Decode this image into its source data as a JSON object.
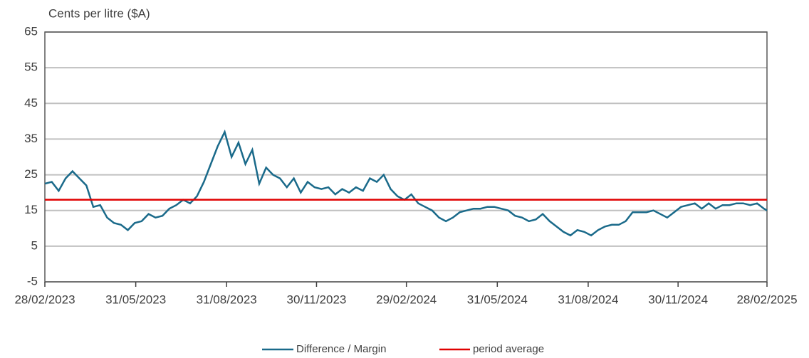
{
  "chart_data": {
    "type": "line",
    "y_label": "Cents per litre ($A)",
    "x": [
      "28/02/2023",
      "07/03/2023",
      "14/03/2023",
      "21/03/2023",
      "28/03/2023",
      "04/04/2023",
      "11/04/2023",
      "18/04/2023",
      "25/04/2023",
      "02/05/2023",
      "09/05/2023",
      "16/05/2023",
      "23/05/2023",
      "30/05/2023",
      "06/06/2023",
      "13/06/2023",
      "20/06/2023",
      "27/06/2023",
      "04/07/2023",
      "11/07/2023",
      "18/07/2023",
      "25/07/2023",
      "01/08/2023",
      "08/08/2023",
      "15/08/2023",
      "22/08/2023",
      "29/08/2023",
      "05/09/2023",
      "12/09/2023",
      "19/09/2023",
      "26/09/2023",
      "03/10/2023",
      "10/10/2023",
      "17/10/2023",
      "24/10/2023",
      "31/10/2023",
      "07/11/2023",
      "14/11/2023",
      "21/11/2023",
      "28/11/2023",
      "05/12/2023",
      "12/12/2023",
      "19/12/2023",
      "26/12/2023",
      "02/01/2024",
      "09/01/2024",
      "16/01/2024",
      "23/01/2024",
      "30/01/2024",
      "06/02/2024",
      "13/02/2024",
      "20/02/2024",
      "27/02/2024",
      "05/03/2024",
      "12/03/2024",
      "19/03/2024",
      "26/03/2024",
      "02/04/2024",
      "09/04/2024",
      "16/04/2024",
      "23/04/2024",
      "30/04/2024",
      "07/05/2024",
      "14/05/2024",
      "21/05/2024",
      "28/05/2024",
      "04/06/2024",
      "11/06/2024",
      "18/06/2024",
      "25/06/2024",
      "02/07/2024",
      "09/07/2024",
      "16/07/2024",
      "23/07/2024",
      "30/07/2024",
      "06/08/2024",
      "13/08/2024",
      "20/08/2024",
      "27/08/2024",
      "03/09/2024",
      "10/09/2024",
      "17/09/2024",
      "24/09/2024",
      "01/10/2024",
      "08/10/2024",
      "15/10/2024",
      "22/10/2024",
      "29/10/2024",
      "05/11/2024",
      "12/11/2024",
      "19/11/2024",
      "26/11/2024",
      "03/12/2024",
      "10/12/2024",
      "17/12/2024",
      "24/12/2024",
      "31/12/2024",
      "07/01/2025",
      "14/01/2025",
      "21/01/2025",
      "28/01/2025",
      "04/02/2025",
      "11/02/2025",
      "18/02/2025",
      "25/02/2025",
      "28/02/2025"
    ],
    "series": [
      {
        "name": "Difference / Margin",
        "color": "#1a6a8a",
        "values": [
          22.5,
          23,
          20.5,
          24,
          26,
          24,
          22,
          16,
          16.5,
          13,
          11.5,
          11,
          9.5,
          11.5,
          12,
          14,
          13,
          13.5,
          15.5,
          16.5,
          18,
          17,
          19,
          23,
          28,
          33,
          37,
          30,
          34,
          28,
          32,
          22.5,
          27,
          25,
          24,
          21.5,
          24,
          20,
          23,
          21.5,
          21,
          21.5,
          19.5,
          21,
          20,
          21.5,
          20.5,
          24,
          23,
          25,
          21,
          19,
          18,
          19.5,
          17,
          16,
          15,
          13,
          12,
          13,
          14.5,
          15,
          15.5,
          15.5,
          16,
          16,
          15.5,
          15,
          13.5,
          13,
          12,
          12.5,
          14,
          12,
          10.5,
          9,
          8,
          9.5,
          9,
          8,
          9.5,
          10.5,
          11,
          11,
          12,
          14.5,
          14.5,
          14.5,
          15,
          14,
          13,
          14.5,
          16,
          16.5,
          17,
          15.5,
          17,
          15.5,
          16.5,
          16.5,
          17,
          17,
          16.5,
          17,
          15.5,
          15
        ]
      }
    ],
    "reference_line": {
      "name": "period average",
      "value": 18,
      "color": "#e00000"
    },
    "xlim": [
      "28/02/2023",
      "28/02/2025"
    ],
    "xticks": [
      "28/02/2023",
      "31/05/2023",
      "31/08/2023",
      "30/11/2023",
      "29/02/2024",
      "31/05/2024",
      "31/08/2024",
      "30/11/2024",
      "28/02/2025"
    ],
    "ylim": [
      -5,
      65
    ],
    "yticks": [
      -5,
      5,
      15,
      25,
      35,
      45,
      55,
      65
    ],
    "grid": true
  }
}
